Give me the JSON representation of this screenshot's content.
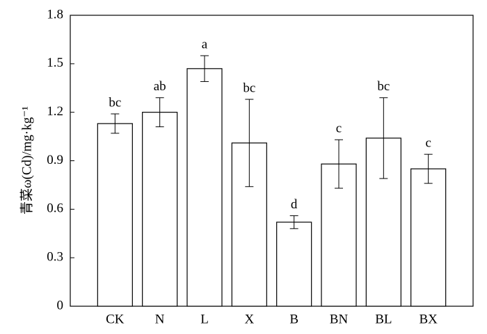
{
  "chart_data": {
    "type": "bar",
    "y_label": "青菜ω(Cd)/mg·kg⁻¹",
    "categories": [
      "CK",
      "N",
      "L",
      "X",
      "B",
      "BN",
      "BL",
      "BX"
    ],
    "values": [
      1.13,
      1.2,
      1.47,
      1.01,
      0.52,
      0.88,
      1.04,
      0.85
    ],
    "errors": [
      0.06,
      0.09,
      0.08,
      0.27,
      0.04,
      0.15,
      0.25,
      0.09
    ],
    "value_labels": [
      "bc",
      "ab",
      "a",
      "bc",
      "d",
      "c",
      "bc",
      "c"
    ],
    "color": "#ffffff",
    "ylim": [
      0,
      1.8
    ],
    "yticks": [
      0,
      0.3,
      0.6,
      0.9,
      1.2,
      1.5,
      1.8
    ]
  }
}
